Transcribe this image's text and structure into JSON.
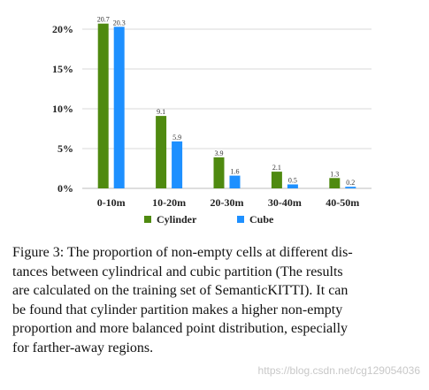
{
  "chart_data": {
    "type": "bar",
    "categories": [
      "0-10m",
      "10-20m",
      "20-30m",
      "30-40m",
      "40-50m"
    ],
    "series": [
      {
        "name": "Cylinder",
        "values": [
          20.7,
          9.1,
          3.9,
          2.1,
          1.3
        ],
        "color": "#4f8a10"
      },
      {
        "name": "Cube",
        "values": [
          20.3,
          5.9,
          1.6,
          0.5,
          0.2
        ],
        "color": "#1e90ff"
      }
    ],
    "y_ticks": [
      "0%",
      "5%",
      "10%",
      "15%",
      "20%"
    ],
    "ylim": [
      0,
      22
    ],
    "grid": true,
    "legend_position": "bottom-center"
  },
  "caption": {
    "lines": [
      "Figure 3: The proportion of non-empty cells at different dis-",
      "tances between cylindrical and cubic partition (The results",
      "are calculated on the training set of SemanticKITTI). It can",
      "be found that cylinder partition makes a higher non-empty",
      "proportion and more balanced point distribution, especially",
      "for farther-away regions."
    ]
  },
  "watermark": "https://blog.csdn.net/cg129054036"
}
